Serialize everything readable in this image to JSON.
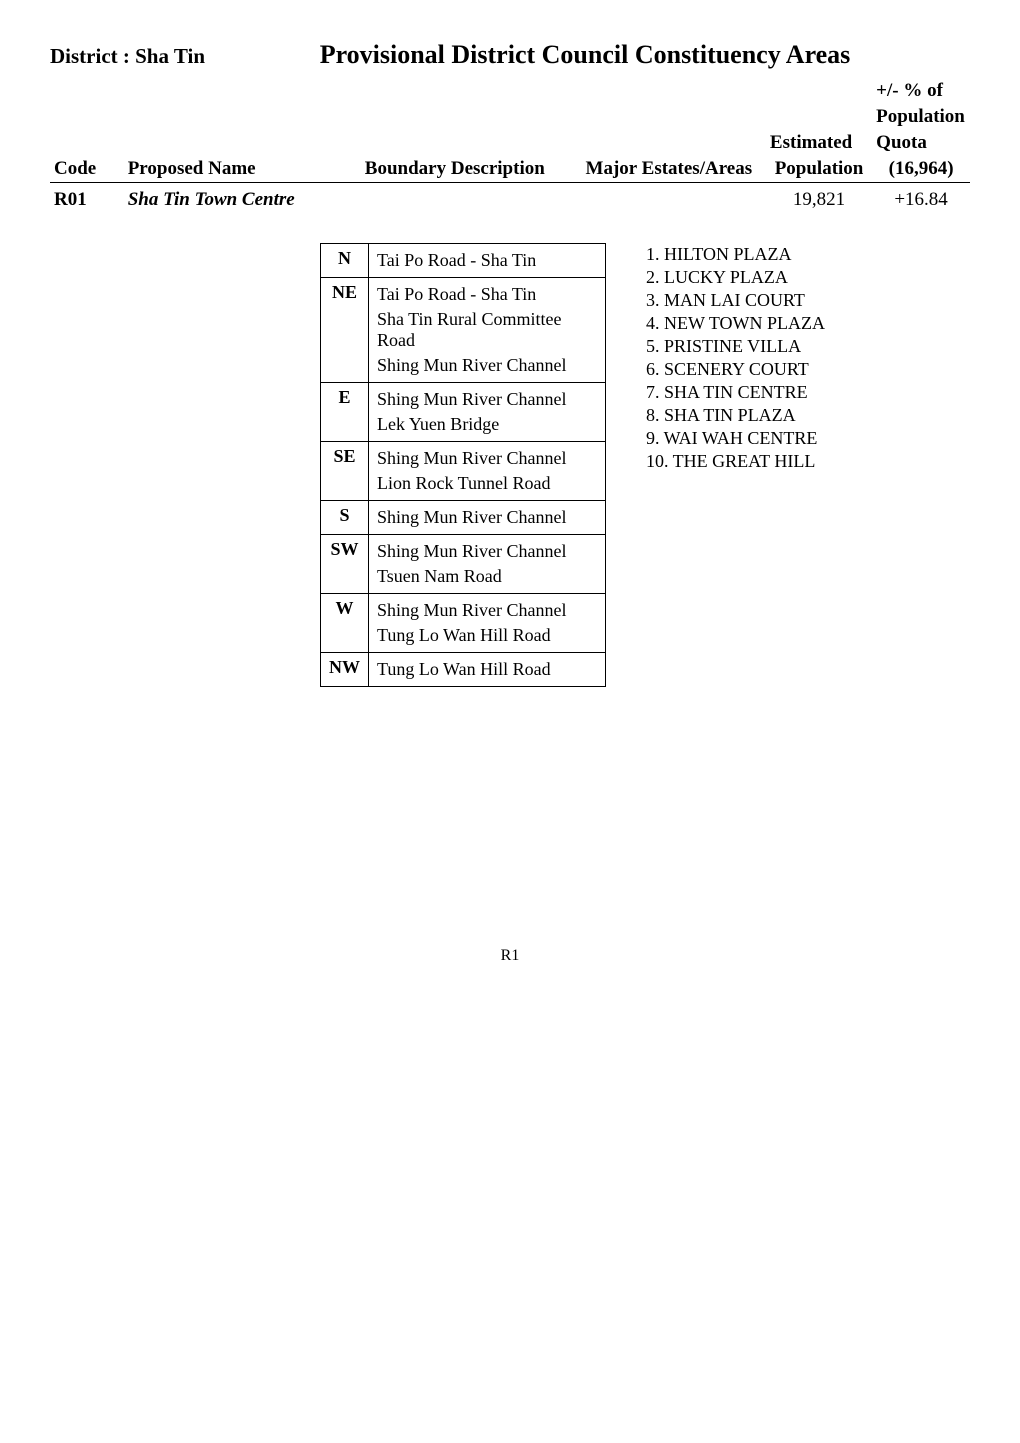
{
  "district": "District : Sha Tin",
  "page_title": "Provisional District Council Constituency Areas",
  "headers": {
    "code": "Code",
    "proposed_name": "Proposed Name",
    "boundary_desc": "Boundary Description",
    "major_estates": "Major Estates/Areas",
    "estimated": "Estimated",
    "population": "Population",
    "quota": "Quota",
    "quota_val": "(16,964)",
    "plus_minus": "+/- % of",
    "population2": "Population"
  },
  "row": {
    "code": "R01",
    "name": "Sha Tin Town Centre",
    "est_pop": "19,821",
    "pct": "+16.84"
  },
  "boundary": [
    {
      "dir": "N",
      "lines": [
        "Tai Po Road - Sha Tin"
      ]
    },
    {
      "dir": "NE",
      "lines": [
        "Tai Po Road - Sha Tin",
        "Sha Tin Rural Committee Road",
        "Shing Mun River Channel"
      ]
    },
    {
      "dir": "E",
      "lines": [
        "Shing Mun River Channel",
        "Lek Yuen Bridge"
      ]
    },
    {
      "dir": "SE",
      "lines": [
        "Shing Mun River Channel",
        "Lion Rock Tunnel Road"
      ]
    },
    {
      "dir": "S",
      "lines": [
        "Shing Mun River Channel"
      ]
    },
    {
      "dir": "SW",
      "lines": [
        "Shing Mun River Channel",
        "Tsuen Nam Road"
      ]
    },
    {
      "dir": "W",
      "lines": [
        "Shing Mun River Channel",
        "Tung Lo Wan Hill Road"
      ]
    },
    {
      "dir": "NW",
      "lines": [
        "Tung Lo Wan Hill Road"
      ]
    }
  ],
  "estates": [
    "1.  HILTON PLAZA",
    "2.  LUCKY PLAZA",
    "3.  MAN LAI COURT",
    "4.  NEW TOWN PLAZA",
    "5.  PRISTINE VILLA",
    "6.  SCENERY COURT",
    "7.  SHA TIN CENTRE",
    "8.  SHA TIN PLAZA",
    "9.  WAI WAH CENTRE",
    "10. THE GREAT HILL"
  ],
  "page_num": "R1"
}
